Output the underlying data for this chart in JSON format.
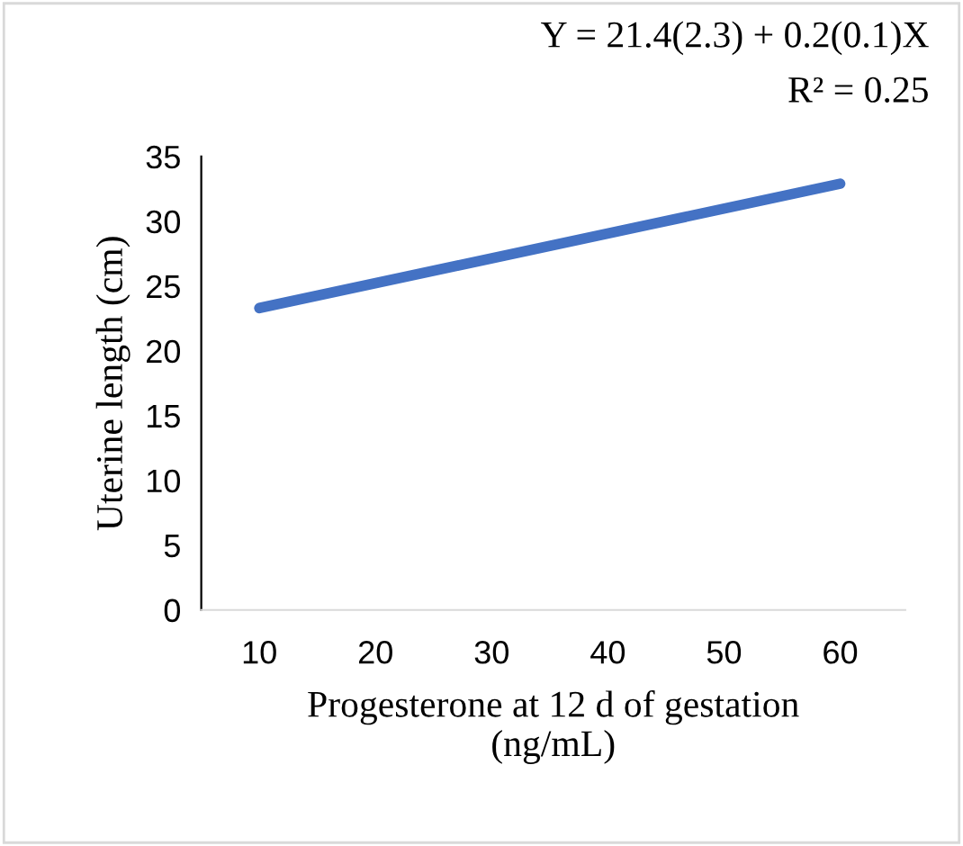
{
  "chart_data": {
    "type": "line",
    "xlabel": "Progesterone at 12 d of gestation\n(ng/mL)",
    "ylabel": "Uterine length (cm)",
    "annotations": [
      "Y = 21.4(2.3) + 0.2(0.1)X",
      "R² = 0.25"
    ],
    "x": [
      10,
      60
    ],
    "series": [
      {
        "color": "#4472c4",
        "values": [
          23.3,
          32.9
        ]
      }
    ],
    "xlim": [
      5,
      65.6
    ],
    "xticks": [
      10,
      20,
      30,
      40,
      50,
      60
    ],
    "ylim": [
      0,
      35
    ],
    "yticks": [
      0,
      5,
      10,
      15,
      20,
      25,
      30,
      35
    ],
    "grid": false,
    "legend": false,
    "marker": "none",
    "line_style": "solid"
  }
}
